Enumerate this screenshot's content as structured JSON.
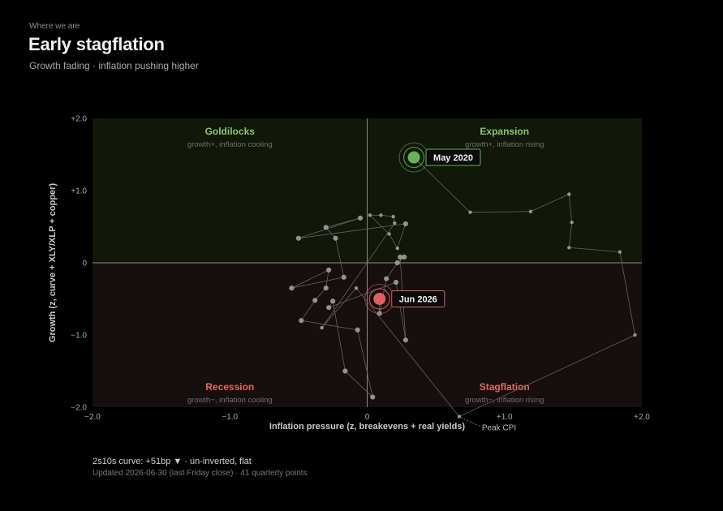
{
  "header": {
    "eyebrow": "Where we are",
    "title": "Early stagflation",
    "subtitle": "Growth fading · inflation pushing higher"
  },
  "footer": {
    "curve": "2s10s curve: +51bp ▼ · un-inverted, flat",
    "updated": "Updated 2026-06-30 (last Friday close) · 41 quarterly points"
  },
  "colors": {
    "background": "#000000",
    "growth_quadrant": "#111709",
    "contraction_quadrant": "#170e0e",
    "axis_line": "#8c8c8c",
    "trail": "#6a6a6a",
    "point": "#9e9e9e",
    "positive": "#63b35a",
    "negative": "#e06060",
    "positive_label": "#8cc46c",
    "negative_label": "#df6a60"
  },
  "chart_data": {
    "type": "scatter",
    "xlabel": "Inflation pressure (z, breakevens + real yields)",
    "ylabel": "Growth (z, curve + XLY/XLP + copper)",
    "xlim": [
      -2.0,
      2.0
    ],
    "ylim": [
      -2.0,
      2.0
    ],
    "xticks": [
      {
        "value": -2.0,
        "label": "−2.0"
      },
      {
        "value": -1.0,
        "label": "−1.0"
      },
      {
        "value": 0,
        "label": "0"
      },
      {
        "value": 1.0,
        "label": "+1.0"
      },
      {
        "value": 2.0,
        "label": "+2.0"
      }
    ],
    "yticks": [
      {
        "value": 2.0,
        "label": "+2.0"
      },
      {
        "value": 1.0,
        "label": "+1.0"
      },
      {
        "value": 0,
        "label": "0"
      },
      {
        "value": -1.0,
        "label": "−1.0"
      },
      {
        "value": -2.0,
        "label": "−2.0"
      }
    ],
    "quadrants": [
      {
        "name": "Goldilocks",
        "sub": "growth+, inflation cooling",
        "position": "top-left",
        "tone": "positive"
      },
      {
        "name": "Expansion",
        "sub": "growth+, inflation rising",
        "position": "top-right",
        "tone": "positive"
      },
      {
        "name": "Recession",
        "sub": "growth−, inflation cooling",
        "position": "bottom-left",
        "tone": "negative"
      },
      {
        "name": "Stagflation",
        "sub": "growth−, inflation rising",
        "position": "bottom-right",
        "tone": "negative"
      }
    ],
    "trail": [
      {
        "x": 0.34,
        "y": 1.46
      },
      {
        "x": 0.75,
        "y": 0.7
      },
      {
        "x": 1.19,
        "y": 0.71
      },
      {
        "x": 1.47,
        "y": 0.95
      },
      {
        "x": 1.49,
        "y": 0.56
      },
      {
        "x": 1.47,
        "y": 0.21
      },
      {
        "x": 1.84,
        "y": 0.15
      },
      {
        "x": 1.95,
        "y": -1.0
      },
      {
        "x": 0.67,
        "y": -2.13
      },
      {
        "x": -0.08,
        "y": -0.35
      },
      {
        "x": -0.33,
        "y": -0.9
      },
      {
        "x": 0.2,
        "y": 0.55
      },
      {
        "x": 0.19,
        "y": 0.64
      },
      {
        "x": 0.1,
        "y": 0.66
      },
      {
        "x": 0.02,
        "y": 0.66
      },
      {
        "x": 0.16,
        "y": 0.4
      },
      {
        "x": 0.22,
        "y": 0.2
      },
      {
        "x": 0.28,
        "y": 0.54
      },
      {
        "x": -0.5,
        "y": 0.34
      },
      {
        "x": -0.05,
        "y": 0.62
      },
      {
        "x": -0.3,
        "y": 0.49
      },
      {
        "x": -0.23,
        "y": 0.34
      },
      {
        "x": -0.17,
        "y": -0.2
      },
      {
        "x": -0.55,
        "y": -0.35
      },
      {
        "x": -0.28,
        "y": -0.1
      },
      {
        "x": -0.3,
        "y": -0.35
      },
      {
        "x": -0.38,
        "y": -0.52
      },
      {
        "x": -0.48,
        "y": -0.8
      },
      {
        "x": -0.07,
        "y": -0.93
      },
      {
        "x": 0.04,
        "y": -1.86
      },
      {
        "x": -0.16,
        "y": -1.5
      },
      {
        "x": -0.25,
        "y": -0.53
      },
      {
        "x": -0.28,
        "y": -0.62
      },
      {
        "x": 0.21,
        "y": -0.27
      },
      {
        "x": 0.28,
        "y": -1.07
      },
      {
        "x": 0.24,
        "y": 0.08
      },
      {
        "x": 0.27,
        "y": 0.08
      },
      {
        "x": 0.22,
        "y": 0.0
      },
      {
        "x": 0.14,
        "y": -0.22
      },
      {
        "x": 0.09,
        "y": -0.7
      },
      {
        "x": 0.09,
        "y": -0.5
      }
    ],
    "highlights": [
      {
        "label": "May 2020",
        "x": 0.34,
        "y": 1.46,
        "tone": "positive"
      },
      {
        "label": "Jun 2026",
        "x": 0.09,
        "y": -0.5,
        "tone": "negative"
      }
    ],
    "annotations": [
      {
        "label": "Peak CPI",
        "x": 0.67,
        "y": -2.13
      }
    ],
    "grid": false,
    "legend": "none"
  }
}
